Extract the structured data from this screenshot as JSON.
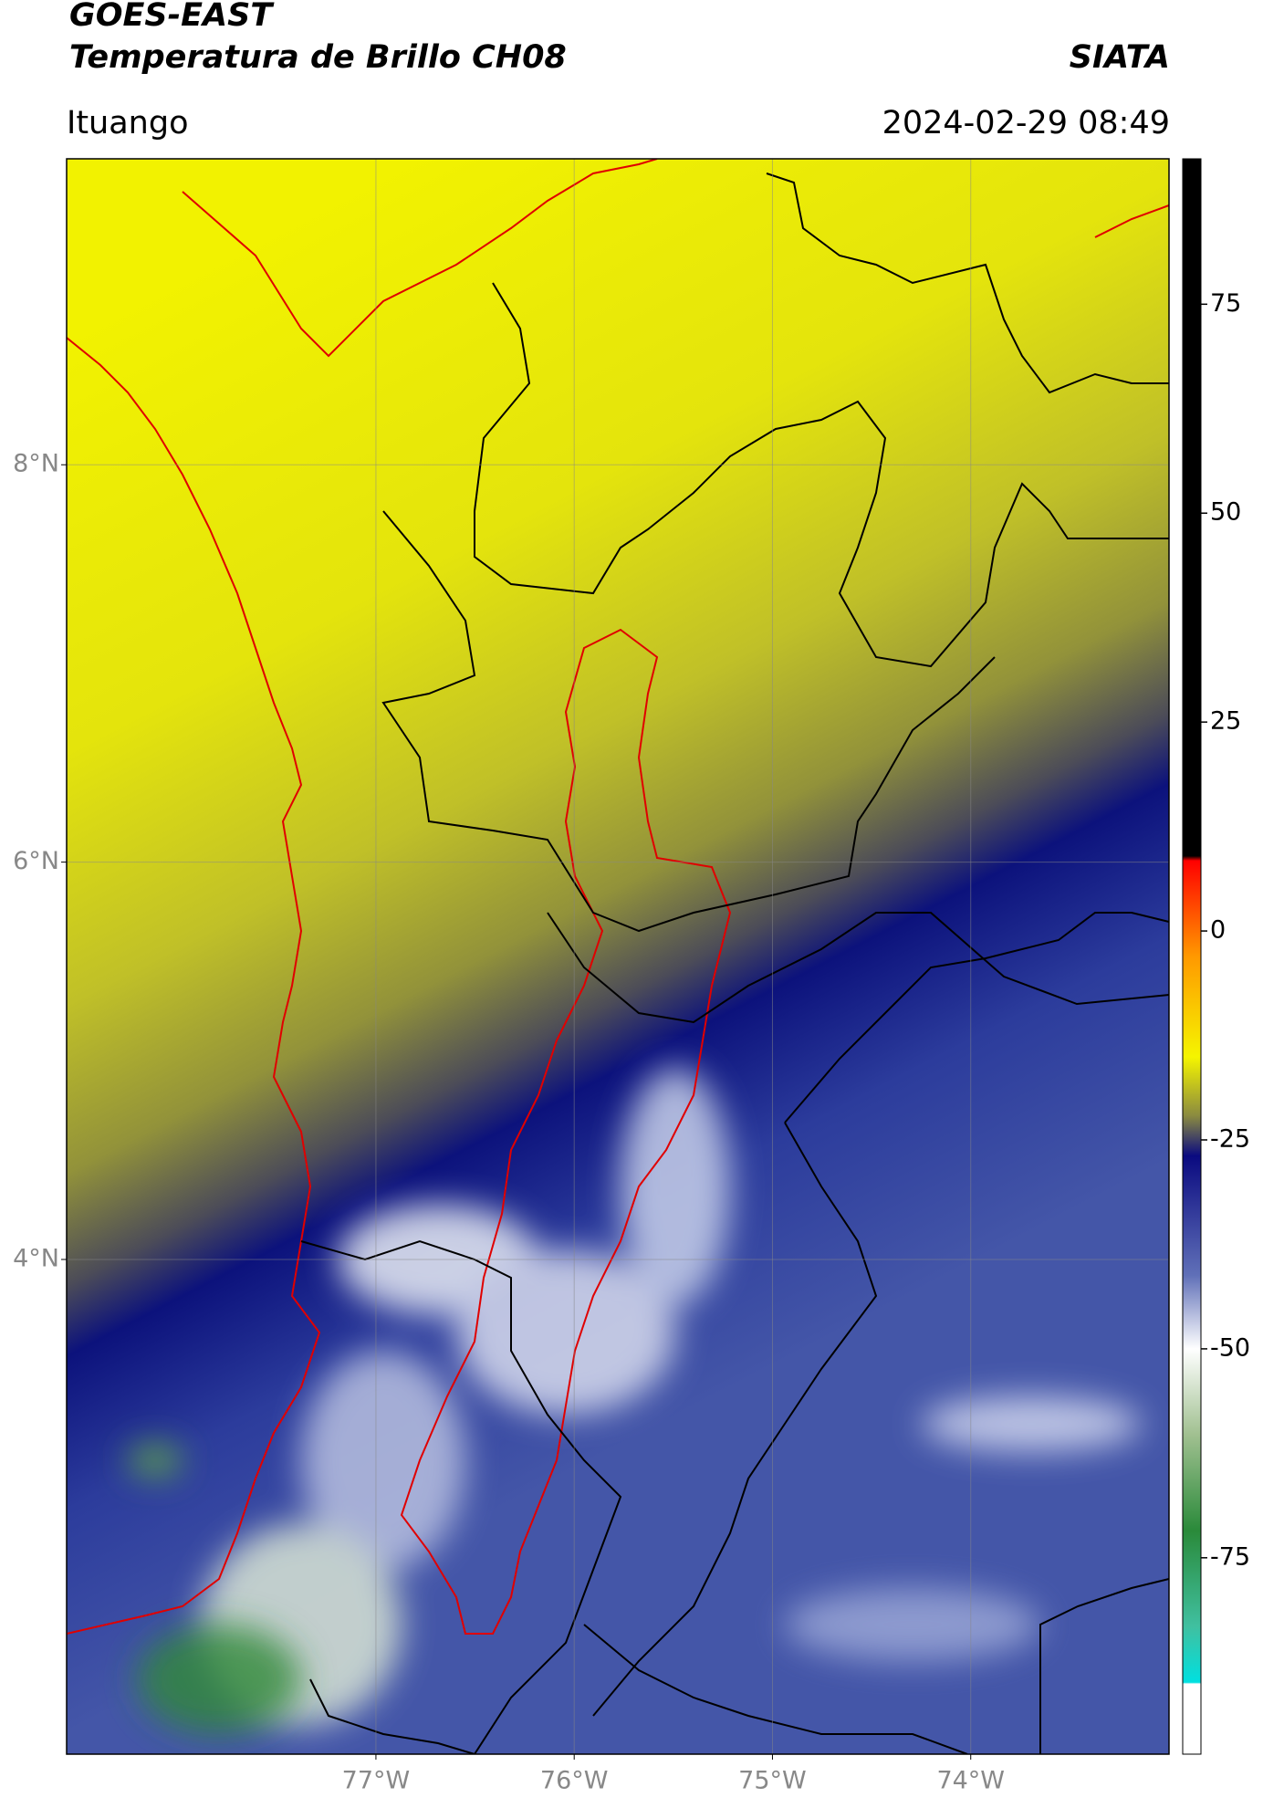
{
  "header": {
    "title": "GOES-EAST",
    "subtitle": "Temperatura de Brillo CH08",
    "agency": "SIATA",
    "location": "Ituango",
    "datetime": "2024-02-29 08:49"
  },
  "map": {
    "latlim": [
      1.51,
      9.54
    ],
    "lonlim": [
      -78.56,
      -73.0
    ],
    "lat_ticks": [
      {
        "value": 8,
        "label": "8°N"
      },
      {
        "value": 6,
        "label": "6°N"
      },
      {
        "value": 4,
        "label": "4°N"
      }
    ],
    "lon_ticks": [
      {
        "value": -77,
        "label": "77°W"
      },
      {
        "value": -76,
        "label": "76°W"
      },
      {
        "value": -75,
        "label": "75°W"
      },
      {
        "value": -74,
        "label": "74°W"
      }
    ],
    "grid": true
  },
  "colorbar": {
    "lim": [
      -98.5,
      92.4
    ],
    "ticks": [
      75,
      50,
      25,
      0,
      -25,
      -50,
      -75
    ]
  }
}
